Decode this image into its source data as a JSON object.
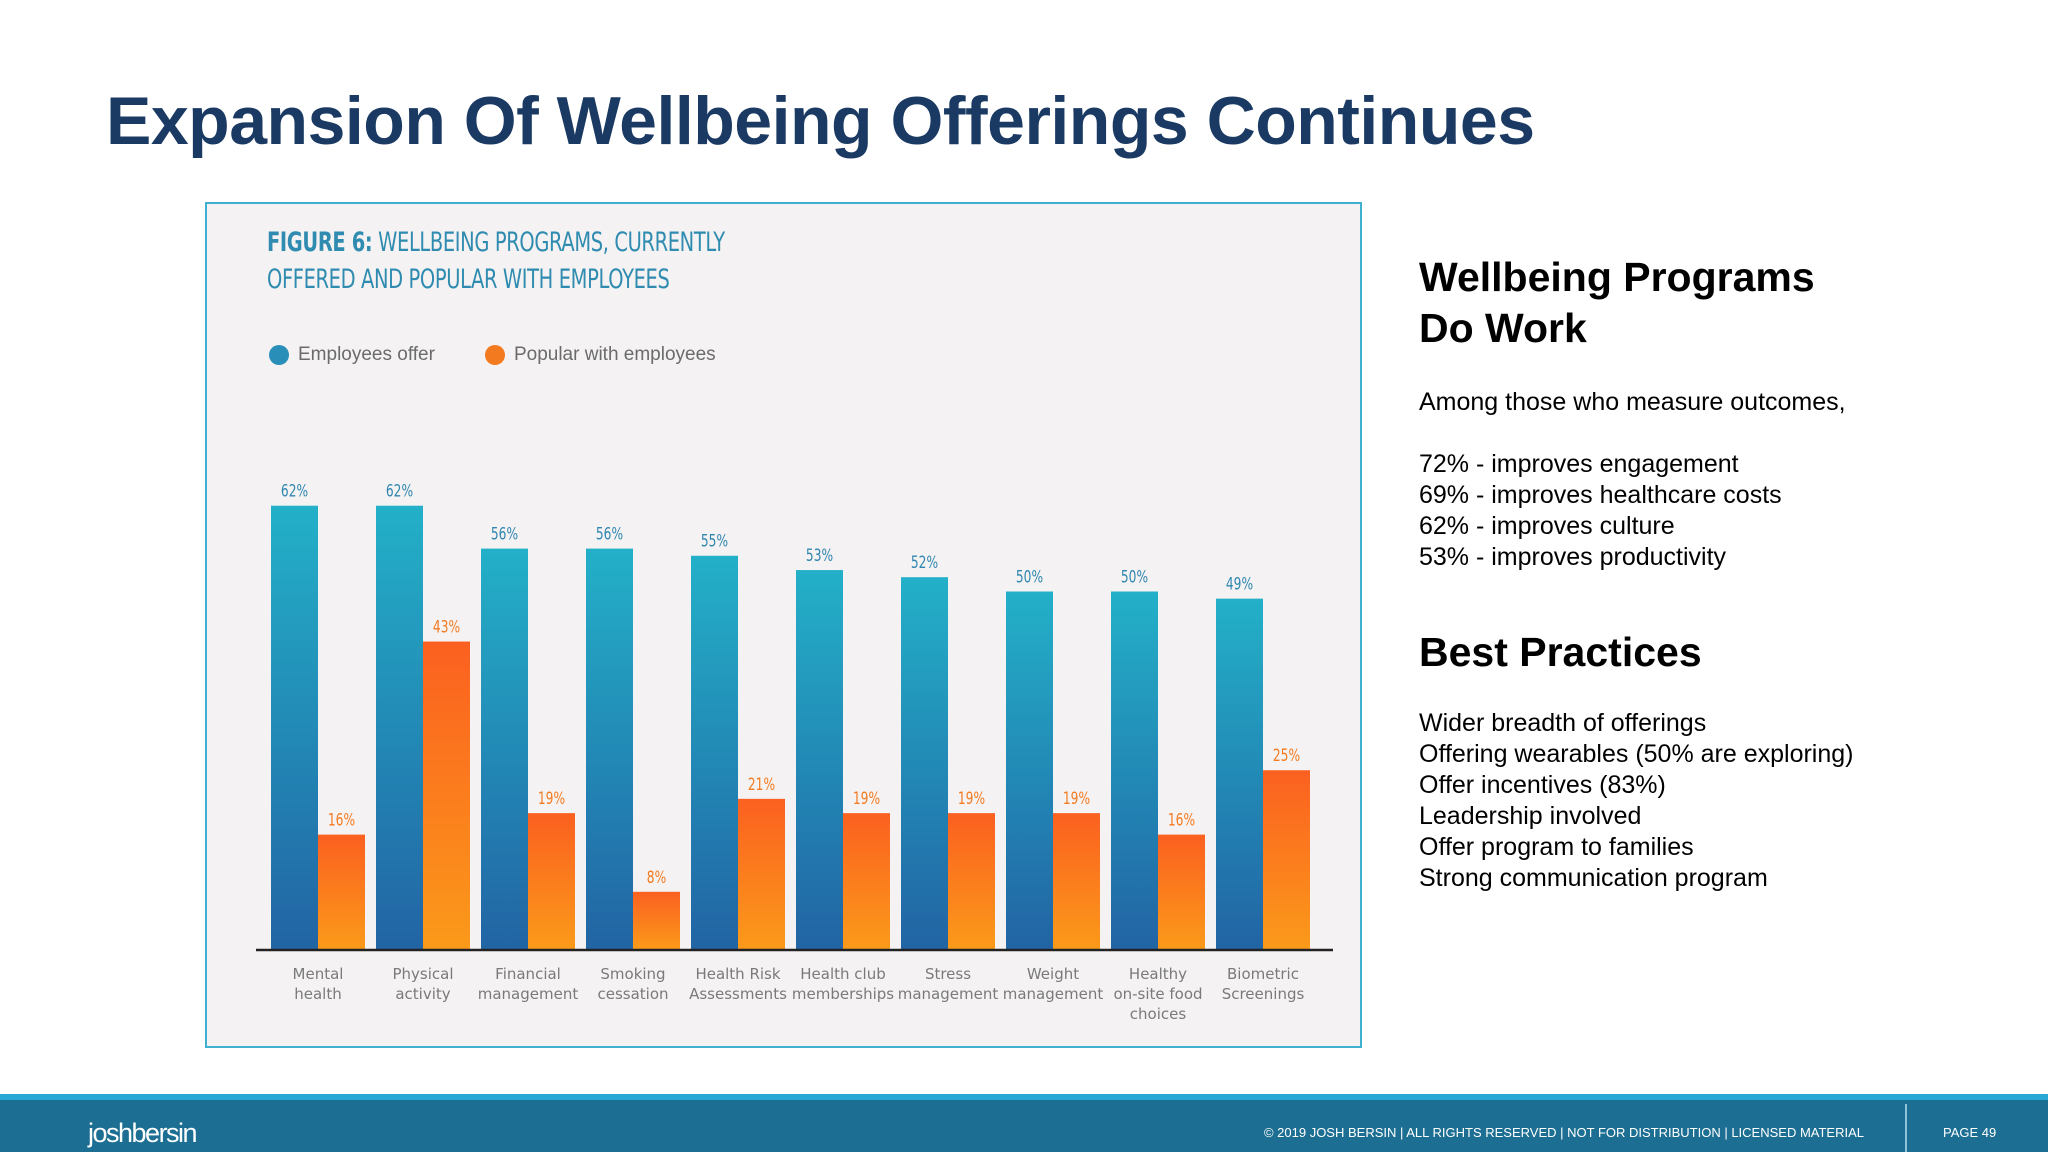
{
  "slide": {
    "title": "Expansion Of Wellbeing Offerings Continues"
  },
  "figure": {
    "title_bold": "FIGURE 6:",
    "title_line1_rest": "WELLBEING PROGRAMS, CURRENTLY",
    "title_line2": "OFFERED AND POPULAR WITH EMPLOYEES"
  },
  "chart_data": {
    "type": "bar",
    "title": "FIGURE 6: WELLBEING PROGRAMS, CURRENTLY OFFERED AND POPULAR WITH EMPLOYEES",
    "xlabel": "",
    "ylabel": "",
    "ylim": [
      0,
      70
    ],
    "grid": false,
    "legend_position": "top-left",
    "value_suffix": "%",
    "categories": [
      [
        "Mental",
        "health"
      ],
      [
        "Physical",
        "activity"
      ],
      [
        "Financial",
        "management"
      ],
      [
        "Smoking",
        "cessation"
      ],
      [
        "Health Risk",
        "Assessments"
      ],
      [
        "Health club",
        "memberships"
      ],
      [
        "Stress",
        "management"
      ],
      [
        "Weight",
        "management"
      ],
      [
        "Healthy",
        "on-site food",
        "choices"
      ],
      [
        "Biometric",
        "Screenings"
      ]
    ],
    "series": [
      {
        "name": "Employees offer",
        "color": "#2a8fb8",
        "color_top": "#23b0c8",
        "color_bottom": "#2264a4",
        "label_color": "#2f86b0",
        "values": [
          62,
          62,
          56,
          56,
          55,
          53,
          52,
          50,
          50,
          49
        ]
      },
      {
        "name": "Popular with employees",
        "color": "#f47a20",
        "color_top": "#fb6020",
        "color_bottom": "#fb9a1a",
        "label_color": "#f47a20",
        "values": [
          16,
          43,
          19,
          8,
          21,
          19,
          19,
          19,
          16,
          25
        ]
      }
    ]
  },
  "side_panel": {
    "heading1_line1": "Wellbeing Programs",
    "heading1_line2": "Do Work",
    "intro": "Among those who measure outcomes,",
    "stats": [
      "72% - improves engagement",
      "69% - improves healthcare costs",
      "62% - improves culture",
      "53% - improves productivity"
    ],
    "heading2": "Best Practices",
    "practices": [
      "Wider breadth of offerings",
      "Offering wearables (50% are exploring)",
      "Offer incentives (83%)",
      "Leadership involved",
      "Offer program to families",
      "Strong communication program"
    ]
  },
  "footer": {
    "logo": "joshbersin",
    "copyright": "© 2019 JOSH BERSIN | ALL RIGHTS RESERVED | NOT FOR DISTRIBUTION | LICENSED MATERIAL",
    "page": "PAGE  49"
  }
}
